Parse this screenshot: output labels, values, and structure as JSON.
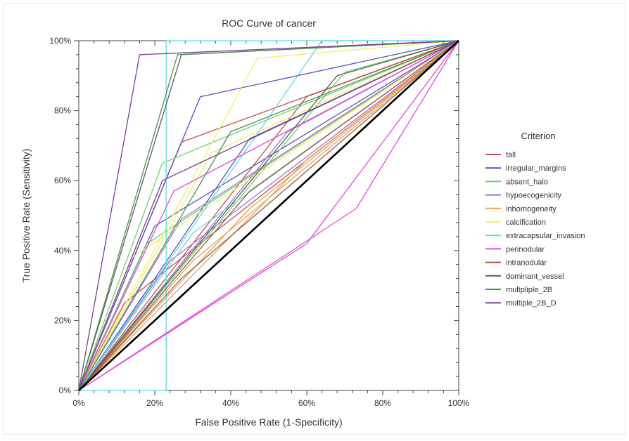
{
  "chart_data": {
    "type": "line",
    "title": "ROC Curve of cancer",
    "xlabel": "False Positive Rate (1-Specificity)",
    "ylabel": "True Positive Rate (Sensitivity)",
    "xlim": [
      0,
      100
    ],
    "ylim": [
      0,
      100
    ],
    "x_ticks": [
      "0%",
      "20%",
      "40%",
      "60%",
      "80%",
      "100%"
    ],
    "y_ticks": [
      "0%",
      "20%",
      "40%",
      "60%",
      "80%",
      "100%"
    ],
    "grid": false,
    "legend": {
      "title": "Criterion",
      "position": "right"
    },
    "diagonal": {
      "color": "#000000",
      "points": [
        [
          0,
          0
        ],
        [
          100,
          100
        ]
      ]
    },
    "series": [
      {
        "name": "tall",
        "color": "#c0504d",
        "lines": [
          [
            [
              0,
              0
            ],
            [
              27,
              71
            ],
            [
              100,
              100
            ]
          ],
          [
            [
              0,
              0
            ],
            [
              60,
              84
            ],
            [
              100,
              100
            ]
          ],
          [
            [
              0,
              0
            ],
            [
              12,
              25
            ],
            [
              100,
              100
            ]
          ]
        ]
      },
      {
        "name": "irregular_margins",
        "color": "#5b4fb8",
        "lines": [
          [
            [
              0,
              0
            ],
            [
              32,
              84
            ],
            [
              100,
              100
            ]
          ],
          [
            [
              0,
              0
            ],
            [
              20,
              47
            ],
            [
              100,
              100
            ]
          ],
          [
            [
              0,
              0
            ],
            [
              45,
              72
            ],
            [
              100,
              100
            ]
          ]
        ]
      },
      {
        "name": "absent_halo",
        "color": "#6bd26b",
        "lines": [
          [
            [
              0,
              0
            ],
            [
              22,
              65
            ],
            [
              100,
              100
            ]
          ],
          [
            [
              0,
              0
            ],
            [
              70,
              91
            ],
            [
              100,
              100
            ]
          ],
          [
            [
              0,
              0
            ],
            [
              18,
              42
            ],
            [
              100,
              100
            ]
          ]
        ]
      },
      {
        "name": "hypoecogenicity",
        "color": "#a66fd1",
        "lines": [
          [
            [
              0,
              0
            ],
            [
              27,
              49
            ],
            [
              100,
              100
            ]
          ],
          [
            [
              0,
              0
            ],
            [
              24,
              37
            ],
            [
              100,
              100
            ]
          ],
          [
            [
              0,
              0
            ],
            [
              55,
              74
            ],
            [
              100,
              100
            ]
          ]
        ]
      },
      {
        "name": "inhomogeneity",
        "color": "#e8a05c",
        "lines": [
          [
            [
              0,
              0
            ],
            [
              30,
              37
            ],
            [
              100,
              100
            ]
          ],
          [
            [
              0,
              0
            ],
            [
              45,
              52
            ],
            [
              100,
              100
            ]
          ],
          [
            [
              0,
              0
            ],
            [
              60,
              66
            ],
            [
              100,
              100
            ]
          ]
        ]
      },
      {
        "name": "calcification",
        "color": "#f2ec6a",
        "lines": [
          [
            [
              0,
              0
            ],
            [
              47,
              95
            ],
            [
              100,
              100
            ]
          ],
          [
            [
              0,
              0
            ],
            [
              14,
              38
            ],
            [
              100,
              100
            ]
          ],
          [
            [
              0,
              0
            ],
            [
              35,
              68
            ],
            [
              100,
              100
            ]
          ]
        ]
      },
      {
        "name": "extracapsular_invasion",
        "color": "#62d8e6",
        "lines": [
          [
            [
              0,
              0
            ],
            [
              23,
              0
            ],
            [
              23,
              100
            ],
            [
              100,
              100
            ]
          ],
          [
            [
              0,
              0
            ],
            [
              64,
              100
            ],
            [
              100,
              100
            ]
          ],
          [
            [
              0,
              0
            ],
            [
              30,
              45
            ],
            [
              100,
              100
            ]
          ]
        ]
      },
      {
        "name": "perinodular",
        "color": "#e24bd7",
        "lines": [
          [
            [
              0,
              0
            ],
            [
              73,
              52
            ],
            [
              100,
              100
            ]
          ],
          [
            [
              0,
              0
            ],
            [
              60,
              42
            ],
            [
              100,
              100
            ]
          ],
          [
            [
              0,
              0
            ],
            [
              25,
              57
            ],
            [
              100,
              100
            ]
          ]
        ]
      },
      {
        "name": "intranodular",
        "color": "#9a5a3a",
        "lines": [
          [
            [
              0,
              0
            ],
            [
              27,
              32
            ],
            [
              100,
              100
            ]
          ],
          [
            [
              0,
              0
            ],
            [
              45,
              57
            ],
            [
              100,
              100
            ]
          ]
        ]
      },
      {
        "name": "dominant_vessel",
        "color": "#5a5a5a",
        "lines": [
          [
            [
              0,
              0
            ],
            [
              27,
              96
            ],
            [
              100,
              100
            ]
          ],
          [
            [
              0,
              0
            ],
            [
              68,
              90
            ],
            [
              100,
              100
            ]
          ]
        ]
      },
      {
        "name": "multpliple_2B",
        "color": "#4f8f4f",
        "lines": [
          [
            [
              0,
              0
            ],
            [
              26,
              96
            ],
            [
              100,
              100
            ]
          ],
          [
            [
              0,
              0
            ],
            [
              40,
              74
            ],
            [
              100,
              100
            ]
          ]
        ]
      },
      {
        "name": "multiple_2B_D",
        "color": "#7a3e93",
        "lines": [
          [
            [
              0,
              0
            ],
            [
              16,
              96
            ],
            [
              100,
              100
            ]
          ],
          [
            [
              0,
              0
            ],
            [
              22,
              60
            ],
            [
              100,
              100
            ]
          ]
        ]
      }
    ]
  }
}
